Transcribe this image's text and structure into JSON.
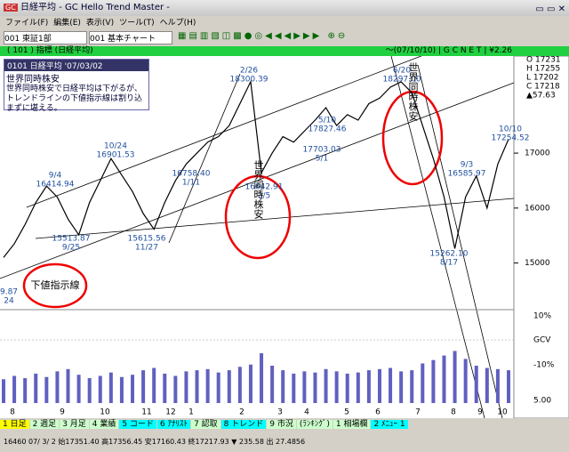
{
  "window": {
    "title": "日経平均 - GC Hello Trend Master -"
  },
  "menu": [
    "ファイル(F)",
    "編集(E)",
    "表示(V)",
    "ツール(T)",
    "ヘルプ(H)"
  ],
  "toolbar": {
    "market": "001 東証1部",
    "chart": "001 基本チャート"
  },
  "chart_header": {
    "left": "( 101 ) 指標 (日経平均)",
    "right": "～(07/10/10) | G C N E T | ¥2.26"
  },
  "ohlc": [
    "O 17231",
    "H 17255",
    "L 17202",
    "C 17218",
    "▲57.63"
  ],
  "note": {
    "header": "0101 日経平均 '07/03/02",
    "title": "世界同時株安",
    "body": "世界同時株安で日経平均は下がるが、トレンドラインの下値指示線は割り込まずに堪える。"
  },
  "callouts": [
    "世界同時株安",
    "世界同時株安",
    "下値指示線"
  ],
  "annotations": [
    [
      "9/4",
      "16414.94"
    ],
    [
      "10/24",
      "16901.53"
    ],
    [
      "15513.87",
      "9/25"
    ],
    [
      "15615.56",
      "11/27"
    ],
    [
      "16758.40",
      "1/11"
    ],
    [
      "2/26",
      "18300.39"
    ],
    [
      "16642.91",
      "3/5"
    ],
    [
      "5/10",
      "17827.46"
    ],
    [
      "17703.03",
      "5/1"
    ],
    [
      "6/20",
      "18297.00"
    ],
    [
      "9/3",
      "16585.97"
    ],
    [
      "15262.10",
      "8/17"
    ],
    [
      "10/10",
      "17254.52"
    ],
    [
      "9.87",
      "24"
    ]
  ],
  "chart_data": {
    "type": "line",
    "color": "#000000",
    "values": [
      15100,
      15350,
      15700,
      16100,
      16400,
      16200,
      15800,
      15513,
      16100,
      16500,
      16901,
      16600,
      16300,
      15900,
      15615,
      16100,
      16500,
      16800,
      17000,
      17200,
      17300,
      17500,
      17900,
      18300,
      16642,
      17000,
      17300,
      17200,
      17400,
      17600,
      17827,
      17500,
      17700,
      17600,
      17900,
      18000,
      18200,
      18297,
      18100,
      17500,
      16900,
      16200,
      15262,
      16200,
      16585,
      16000,
      16800,
      17254
    ],
    "volume": [
      2.1,
      2.4,
      2.2,
      2.6,
      2.3,
      2.8,
      3.0,
      2.5,
      2.2,
      2.4,
      2.7,
      2.3,
      2.5,
      2.9,
      3.1,
      2.6,
      2.4,
      2.8,
      2.9,
      3.0,
      2.7,
      2.9,
      3.2,
      3.4,
      4.4,
      3.3,
      2.9,
      2.6,
      2.8,
      2.7,
      3.0,
      2.8,
      2.6,
      2.7,
      2.9,
      3.0,
      3.1,
      2.8,
      2.9,
      3.5,
      3.8,
      4.2,
      4.6,
      3.9,
      3.3,
      3.1,
      3.0,
      2.9
    ],
    "volume_color": "#6060c0",
    "ylim": [
      14200,
      18750
    ],
    "yticks": [
      15000,
      16000,
      17000
    ],
    "volume_lim": [
      0,
      5.5
    ],
    "x_labels": [
      "8",
      "9",
      "10",
      "11",
      "12",
      "1",
      "2",
      "3",
      "4",
      "5",
      "6",
      "7",
      "8",
      "9",
      "10"
    ],
    "pane_labels": [
      "10%",
      "GCV",
      "-10%",
      "5.00"
    ]
  },
  "tabs": [
    "1 日足",
    "2 週足",
    "3 月足",
    "4 業績",
    "5 コード",
    "6 ｱﾅﾘｽﾄ",
    "7 認取",
    "8 トレンド",
    "9 市況",
    "(ﾗﾝｷﾝｸﾞ)",
    "1 相場欄",
    "2 ﾒﾆｭｰ 1"
  ],
  "status": "16460 07/ 3/ 2 始17351.40 高17356.45 安17160.43 終17217.93 ▼ 235.58 出 27.4856"
}
